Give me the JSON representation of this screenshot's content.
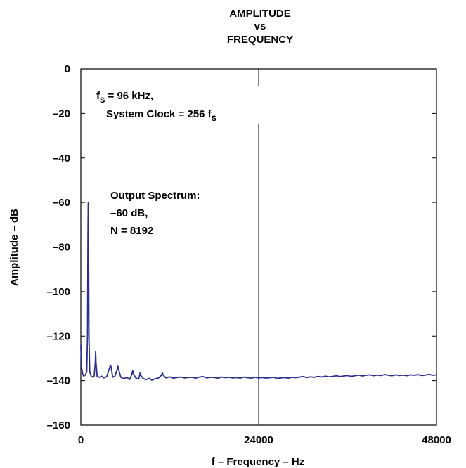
{
  "chart_data": {
    "type": "line",
    "title": [
      "AMPLITUDE",
      "vs",
      "FREQUENCY"
    ],
    "xlabel": "f – Frequency – Hz",
    "ylabel": "Amplitude – dB",
    "xlim": [
      0,
      48000
    ],
    "ylim": [
      -160,
      0
    ],
    "xticks": [
      0,
      24000,
      48000
    ],
    "xtick_labels": [
      "0",
      "24000",
      "48000"
    ],
    "yticks": [
      0,
      -20,
      -40,
      -60,
      -80,
      -100,
      -120,
      -140,
      -160
    ],
    "ytick_labels": [
      "0",
      "–20",
      "–40",
      "–60",
      "–80",
      "–100",
      "–120",
      "–140",
      "–160"
    ],
    "grid": "center-lines",
    "series_color": "#2b2f8c",
    "annotations": [
      {
        "lines": [
          {
            "text": "f",
            "sub": "S",
            "rest": " = 96 kHz,"
          },
          {
            "text": "System Clock = 256 f",
            "sub": "S",
            "rest": ""
          }
        ]
      },
      {
        "lines": [
          {
            "text": "Output Spectrum:"
          },
          {
            "text": "–60 dB,"
          },
          {
            "text": "N = 8192"
          }
        ]
      }
    ],
    "series": [
      {
        "values": [
          [
            0,
            -124
          ],
          [
            100,
            -134
          ],
          [
            250,
            -137
          ],
          [
            400,
            -138
          ],
          [
            600,
            -137.5
          ],
          [
            800,
            -136
          ],
          [
            900,
            -120
          ],
          [
            960,
            -75
          ],
          [
            1000,
            -60
          ],
          [
            1040,
            -75
          ],
          [
            1100,
            -120
          ],
          [
            1200,
            -136
          ],
          [
            1400,
            -138
          ],
          [
            1600,
            -138.5
          ],
          [
            1800,
            -138
          ],
          [
            1950,
            -132
          ],
          [
            2000,
            -127
          ],
          [
            2050,
            -132
          ],
          [
            2200,
            -138
          ],
          [
            2500,
            -138.5
          ],
          [
            2800,
            -138
          ],
          [
            3100,
            -138.8
          ],
          [
            3500,
            -138.2
          ],
          [
            3900,
            -134
          ],
          [
            4000,
            -133
          ],
          [
            4100,
            -134
          ],
          [
            4300,
            -138.5
          ],
          [
            4600,
            -138
          ],
          [
            4900,
            -135
          ],
          [
            5000,
            -133.5
          ],
          [
            5100,
            -135
          ],
          [
            5400,
            -138.5
          ],
          [
            5800,
            -139.2
          ],
          [
            6200,
            -138.5
          ],
          [
            6600,
            -139.5
          ],
          [
            6900,
            -137
          ],
          [
            7000,
            -135.5
          ],
          [
            7100,
            -137
          ],
          [
            7400,
            -138.8
          ],
          [
            7800,
            -139.3
          ],
          [
            7950,
            -137.5
          ],
          [
            8000,
            -136.5
          ],
          [
            8050,
            -137.5
          ],
          [
            8400,
            -139
          ],
          [
            8800,
            -139.6
          ],
          [
            9200,
            -139
          ],
          [
            9600,
            -139.8
          ],
          [
            10000,
            -139.2
          ],
          [
            10500,
            -138.8
          ],
          [
            10900,
            -137.5
          ],
          [
            11000,
            -136.5
          ],
          [
            11100,
            -137.5
          ],
          [
            11500,
            -138.8
          ],
          [
            12000,
            -138.3
          ],
          [
            12500,
            -138.9
          ],
          [
            13000,
            -138.6
          ],
          [
            13500,
            -138.4
          ],
          [
            14000,
            -138.8
          ],
          [
            14500,
            -138.6
          ],
          [
            15000,
            -138.5
          ],
          [
            15500,
            -138.9
          ],
          [
            16000,
            -138.4
          ],
          [
            16500,
            -138.2
          ],
          [
            17000,
            -138.8
          ],
          [
            17500,
            -138.5
          ],
          [
            18000,
            -138.6
          ],
          [
            18500,
            -138.9
          ],
          [
            19000,
            -138.4
          ],
          [
            19500,
            -138.7
          ],
          [
            20000,
            -138.5
          ],
          [
            20500,
            -138.8
          ],
          [
            21000,
            -138.6
          ],
          [
            21500,
            -138.9
          ],
          [
            22000,
            -138.4
          ],
          [
            22500,
            -138.7
          ],
          [
            23000,
            -138.9
          ],
          [
            23500,
            -138.5
          ],
          [
            24000,
            -138.8
          ],
          [
            24500,
            -138.6
          ],
          [
            25000,
            -138.9
          ],
          [
            25500,
            -138.7
          ],
          [
            26000,
            -138.5
          ],
          [
            26500,
            -139
          ],
          [
            27000,
            -138.8
          ],
          [
            27500,
            -138.6
          ],
          [
            28000,
            -138.9
          ],
          [
            28500,
            -138.5
          ],
          [
            29000,
            -138.7
          ],
          [
            29500,
            -138.4
          ],
          [
            30000,
            -138.2
          ],
          [
            30500,
            -138.6
          ],
          [
            31000,
            -138.3
          ],
          [
            31500,
            -138.5
          ],
          [
            32000,
            -138.1
          ],
          [
            32500,
            -138.4
          ],
          [
            33000,
            -138
          ],
          [
            33500,
            -138.3
          ],
          [
            34000,
            -138.1
          ],
          [
            34500,
            -137.8
          ],
          [
            35000,
            -138.2
          ],
          [
            35500,
            -137.9
          ],
          [
            36000,
            -137.7
          ],
          [
            36500,
            -138.1
          ],
          [
            37000,
            -137.8
          ],
          [
            37500,
            -137.5
          ],
          [
            38000,
            -137.9
          ],
          [
            38500,
            -137.6
          ],
          [
            39000,
            -137.4
          ],
          [
            39500,
            -137.8
          ],
          [
            40000,
            -137.5
          ],
          [
            40500,
            -137.7
          ],
          [
            41000,
            -137.3
          ],
          [
            41500,
            -137.6
          ],
          [
            42000,
            -137.8
          ],
          [
            42500,
            -137.4
          ],
          [
            43000,
            -137.7
          ],
          [
            43500,
            -137.5
          ],
          [
            44000,
            -137.8
          ],
          [
            44500,
            -137.4
          ],
          [
            45000,
            -137.6
          ],
          [
            45500,
            -137.3
          ],
          [
            46000,
            -137.7
          ],
          [
            46500,
            -137.5
          ],
          [
            47000,
            -137.2
          ],
          [
            47500,
            -137.6
          ],
          [
            48000,
            -137.4
          ]
        ]
      }
    ]
  }
}
